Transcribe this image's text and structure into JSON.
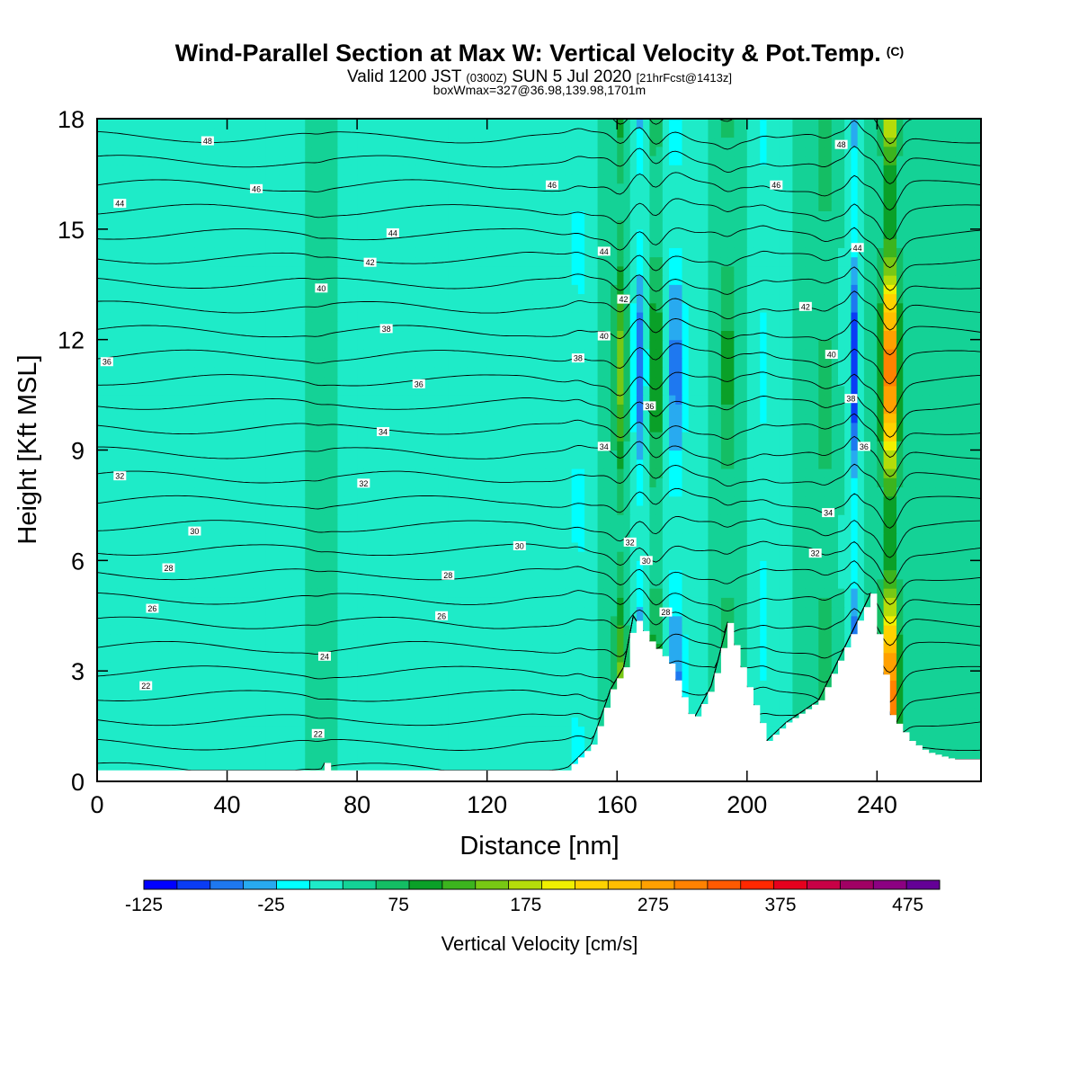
{
  "chart_data": {
    "type": "heatmap",
    "title": "Wind-Parallel Section at Max W: Vertical Velocity & Pot.Temp.",
    "title_mark": "(C)",
    "subtitle_parts": [
      "Valid 1200 JST ",
      "(0300Z)",
      " SUN 5 Jul 2020 ",
      "[21hrFcst@1413z]"
    ],
    "subtitle2": "boxWmax=327@36.98,139.98,1701m",
    "xlabel": "Distance [nm]",
    "ylabel": "Height [Kft MSL]",
    "xlim": [
      0,
      272
    ],
    "ylim": [
      0,
      18
    ],
    "xticks": [
      0,
      40,
      80,
      120,
      160,
      200,
      240
    ],
    "yticks": [
      0,
      3,
      6,
      9,
      12,
      15,
      18
    ],
    "colorbar": {
      "title": "Vertical Velocity [cm/s]",
      "min": -125,
      "max": 500,
      "step": 25,
      "tick_values": [
        -125,
        -25,
        75,
        175,
        275,
        375,
        475
      ],
      "colors": [
        "#0000ff",
        "#0a3cf5",
        "#1e78f0",
        "#28aaf0",
        "#00ffff",
        "#1eebc8",
        "#14d296",
        "#14be64",
        "#0aa028",
        "#3cb41e",
        "#78c814",
        "#b4dc0a",
        "#f0f000",
        "#ffd200",
        "#ffbe00",
        "#ffa000",
        "#ff8200",
        "#ff5a00",
        "#ff2800",
        "#e6001e",
        "#c80046",
        "#a00064",
        "#8c0082",
        "#640096"
      ]
    },
    "background_w": 25,
    "w_features": [
      {
        "x": 5,
        "w": 12,
        "v": -10
      },
      {
        "x": 30,
        "w": 10,
        "v": -5
      },
      {
        "x": 58,
        "w": 6,
        "v": -5
      },
      {
        "x": 68,
        "w": 2,
        "v": 20
      },
      {
        "x": 94,
        "w": 8,
        "v": -10
      },
      {
        "x": 132,
        "w": 4,
        "v": -15
      },
      {
        "x": 148,
        "w": 2,
        "v": -40
      },
      {
        "x": 161,
        "w": 2,
        "v": 110
      },
      {
        "x": 167,
        "w": 2,
        "v": -95
      },
      {
        "x": 172,
        "w": 2,
        "v": 90
      },
      {
        "x": 178,
        "w": 3,
        "v": -90
      },
      {
        "x": 194,
        "w": 2,
        "v": 70
      },
      {
        "x": 205,
        "w": 2,
        "v": -40
      },
      {
        "x": 224,
        "w": 2,
        "v": 60
      },
      {
        "x": 233,
        "w": 1.5,
        "v": -125
      },
      {
        "x": 244,
        "w": 2.5,
        "v": 300
      }
    ],
    "terrain": [
      [
        0,
        0.3
      ],
      [
        69,
        0.3
      ],
      [
        70,
        0.5
      ],
      [
        72,
        0.3
      ],
      [
        144,
        0.3
      ],
      [
        152,
        1
      ],
      [
        158,
        2.5
      ],
      [
        162,
        3.1
      ],
      [
        165,
        4.5
      ],
      [
        170,
        3.8
      ],
      [
        176,
        3.2
      ],
      [
        183,
        1.6
      ],
      [
        189,
        2.6
      ],
      [
        194,
        4.3
      ],
      [
        199,
        2.8
      ],
      [
        206,
        1.1
      ],
      [
        212,
        1.6
      ],
      [
        222,
        2.2
      ],
      [
        232,
        4
      ],
      [
        238,
        5.1
      ],
      [
        244,
        1.8
      ],
      [
        250,
        1.1
      ],
      [
        255,
        0.8
      ],
      [
        263,
        0.6
      ],
      [
        272,
        0.6
      ]
    ],
    "theta_levels": [
      20,
      21,
      22,
      23,
      24,
      25,
      26,
      27,
      28,
      29,
      30,
      31,
      32,
      33,
      34,
      35,
      36,
      37,
      38,
      39,
      40,
      41,
      42,
      43,
      44,
      45,
      46,
      47
    ],
    "theta_labels": [
      {
        "x": 68,
        "y": 1.3,
        "text": "22"
      },
      {
        "x": 15,
        "y": 2.6,
        "text": "22"
      },
      {
        "x": 70,
        "y": 3.4,
        "text": "24"
      },
      {
        "x": 17,
        "y": 4.7,
        "text": "26"
      },
      {
        "x": 106,
        "y": 4.5,
        "text": "26"
      },
      {
        "x": 22,
        "y": 5.8,
        "text": "28"
      },
      {
        "x": 108,
        "y": 5.6,
        "text": "28"
      },
      {
        "x": 30,
        "y": 6.8,
        "text": "30"
      },
      {
        "x": 130,
        "y": 6.4,
        "text": "30"
      },
      {
        "x": 82,
        "y": 8.1,
        "text": "32"
      },
      {
        "x": 7,
        "y": 8.3,
        "text": "32"
      },
      {
        "x": 88,
        "y": 9.5,
        "text": "34"
      },
      {
        "x": 156,
        "y": 9.1,
        "text": "34"
      },
      {
        "x": 99,
        "y": 10.8,
        "text": "36"
      },
      {
        "x": 170,
        "y": 10.2,
        "text": "36"
      },
      {
        "x": 3,
        "y": 11.4,
        "text": "36"
      },
      {
        "x": 89,
        "y": 12.3,
        "text": "38"
      },
      {
        "x": 148,
        "y": 11.5,
        "text": "38"
      },
      {
        "x": 69,
        "y": 13.4,
        "text": "40"
      },
      {
        "x": 156,
        "y": 12.1,
        "text": "40"
      },
      {
        "x": 226,
        "y": 11.6,
        "text": "40"
      },
      {
        "x": 84,
        "y": 14.1,
        "text": "42"
      },
      {
        "x": 162,
        "y": 13.1,
        "text": "42"
      },
      {
        "x": 218,
        "y": 12.9,
        "text": "42"
      },
      {
        "x": 91,
        "y": 14.9,
        "text": "44"
      },
      {
        "x": 156,
        "y": 14.4,
        "text": "44"
      },
      {
        "x": 7,
        "y": 15.7,
        "text": "44"
      },
      {
        "x": 49,
        "y": 16.1,
        "text": "46"
      },
      {
        "x": 140,
        "y": 16.2,
        "text": "46"
      },
      {
        "x": 209,
        "y": 16.2,
        "text": "46"
      },
      {
        "x": 34,
        "y": 17.4,
        "text": "48"
      },
      {
        "x": 229,
        "y": 17.3,
        "text": "48"
      },
      {
        "x": 232,
        "y": 10.4,
        "text": "38"
      },
      {
        "x": 236,
        "y": 9.1,
        "text": "36"
      },
      {
        "x": 225,
        "y": 7.3,
        "text": "34"
      },
      {
        "x": 221,
        "y": 6.2,
        "text": "32"
      },
      {
        "x": 164,
        "y": 6.5,
        "text": "32"
      },
      {
        "x": 169,
        "y": 6.0,
        "text": "30"
      },
      {
        "x": 175,
        "y": 4.6,
        "text": "28"
      },
      {
        "x": 234,
        "y": 14.5,
        "text": "44"
      }
    ]
  }
}
